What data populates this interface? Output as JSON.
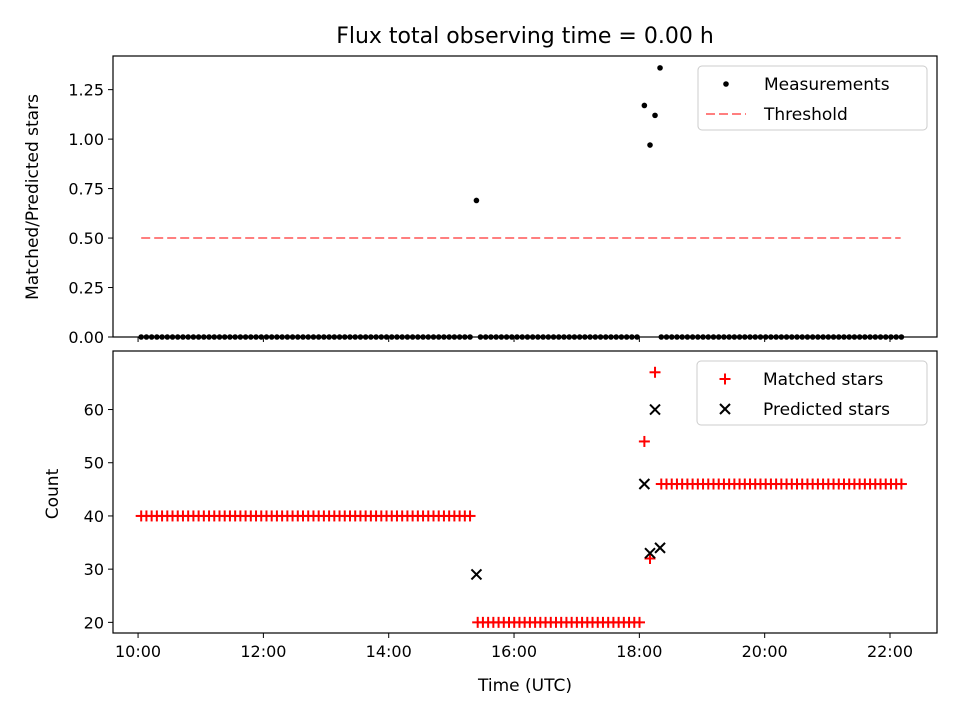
{
  "chart_data": [
    {
      "type": "scatter",
      "title": "Flux total observing time = 0.00 h",
      "xlabel": "",
      "ylabel": "Matched/Predicted stars",
      "ylim": [
        0,
        1.42
      ],
      "yticks": [
        0.0,
        0.25,
        0.5,
        0.75,
        1.0,
        1.25
      ],
      "ytick_labels": [
        "0.00",
        "0.25",
        "0.50",
        "0.75",
        "1.00",
        "1.25"
      ],
      "xlim_hours": [
        9.6,
        22.75
      ],
      "grid": false,
      "legend_position": "top-right",
      "series": [
        {
          "name": "Measurements",
          "marker": "dot",
          "color": "#000000",
          "segments": [
            {
              "from": 10.05,
              "to": 18.0,
              "step": 0.0833,
              "value": 0.0,
              "skip": [
                15.4
              ]
            },
            {
              "from": 18.35,
              "to": 22.17,
              "step": 0.0833,
              "value": 0.0
            }
          ],
          "points": [
            [
              15.4,
              0.69
            ],
            [
              18.08,
              1.17
            ],
            [
              18.17,
              0.97
            ],
            [
              18.25,
              1.12
            ],
            [
              18.33,
              1.36
            ]
          ]
        },
        {
          "name": "Threshold",
          "style": "dashed",
          "color": "#ff7f7f",
          "points": [
            [
              10.05,
              0.5
            ],
            [
              22.17,
              0.5
            ]
          ]
        }
      ]
    },
    {
      "type": "scatter",
      "title": "",
      "xlabel": "Time (UTC)",
      "ylabel": "Count",
      "ylim": [
        18,
        71
      ],
      "yticks": [
        20,
        30,
        40,
        50,
        60
      ],
      "ytick_labels": [
        "20",
        "30",
        "40",
        "50",
        "60"
      ],
      "xlim_hours": [
        9.6,
        22.75
      ],
      "xticks_hours": [
        10,
        12,
        14,
        16,
        18,
        20,
        22
      ],
      "xtick_labels": [
        "10:00",
        "12:00",
        "14:00",
        "16:00",
        "18:00",
        "20:00",
        "22:00"
      ],
      "grid": false,
      "legend_position": "top-right",
      "series": [
        {
          "name": "Matched stars",
          "marker": "plus",
          "color": "#ff0000",
          "segments": [
            {
              "from": 10.05,
              "to": 15.33,
              "step": 0.0833,
              "value": 40
            },
            {
              "from": 15.42,
              "to": 18.0,
              "step": 0.0833,
              "value": 20
            },
            {
              "from": 18.35,
              "to": 22.17,
              "step": 0.0833,
              "value": 46
            }
          ],
          "points": [
            [
              18.08,
              54
            ],
            [
              18.17,
              32
            ],
            [
              18.25,
              67
            ]
          ]
        },
        {
          "name": "Predicted stars",
          "marker": "x",
          "color": "#000000",
          "points": [
            [
              15.4,
              29
            ],
            [
              18.08,
              46
            ],
            [
              18.17,
              33
            ],
            [
              18.25,
              60
            ],
            [
              18.33,
              34
            ]
          ]
        }
      ]
    }
  ]
}
